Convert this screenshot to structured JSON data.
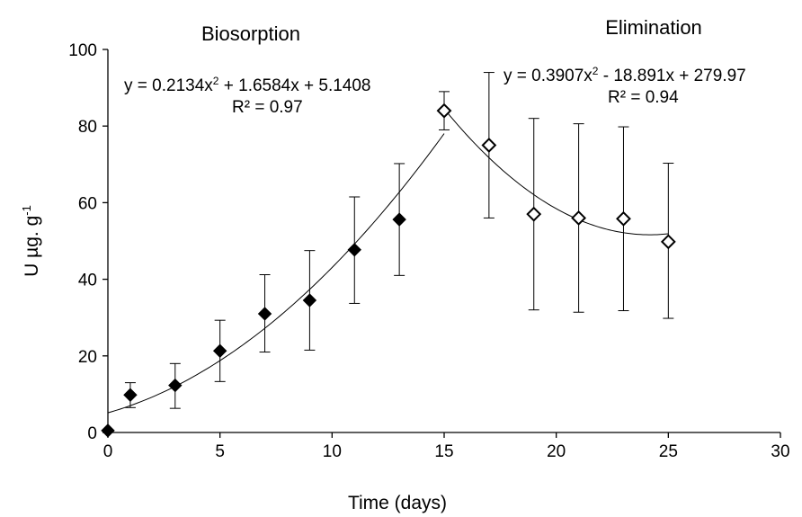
{
  "chart_data": {
    "type": "scatter",
    "xlabel": "Time (days)",
    "ylabel_main": "U µg. g",
    "ylabel_sup": "-1",
    "xlim": [
      0,
      30
    ],
    "ylim": [
      0,
      100
    ],
    "xticks": [
      0,
      5,
      10,
      15,
      20,
      25,
      30
    ],
    "yticks": [
      0,
      20,
      40,
      60,
      80,
      100
    ],
    "grid": false,
    "phases": [
      {
        "label": "Biosorption",
        "marker": "filled-diamond",
        "x": [
          0,
          1,
          3,
          5,
          7,
          9,
          11,
          13
        ],
        "y": [
          0.5,
          9.8,
          12.3,
          21.3,
          31,
          34.5,
          47.7,
          55.6
        ],
        "err_low": [
          0,
          3.3,
          6,
          8,
          10,
          13,
          14,
          14.6
        ],
        "err_high": [
          0,
          3.2,
          5.7,
          8,
          10.2,
          13,
          13.8,
          14.6
        ],
        "fit": {
          "a": 0.2134,
          "b": 1.6584,
          "c": 5.1408,
          "x_range": [
            0,
            15
          ]
        },
        "equation_main": "y = 0.2134x",
        "equation_sup": "2",
        "equation_rest": " + 1.6584x + 5.1408",
        "r2": "R² = 0.97"
      },
      {
        "label": "Elimination",
        "marker": "open-diamond",
        "x": [
          15,
          17,
          19,
          21,
          23,
          25
        ],
        "y": [
          84,
          75,
          57,
          56,
          55.8,
          49.8
        ],
        "err_low": [
          5,
          19,
          25,
          24.6,
          24,
          20
        ],
        "err_high": [
          5,
          19,
          25,
          24.6,
          24,
          20.5
        ],
        "fit": {
          "a": 0.3907,
          "b": -18.891,
          "c": 279.97,
          "x_range": [
            15,
            25
          ]
        },
        "equation_main": "y = 0.3907x",
        "equation_sup": "2",
        "equation_rest": " - 18.891x + 279.97",
        "r2": "R² = 0.94"
      }
    ]
  }
}
